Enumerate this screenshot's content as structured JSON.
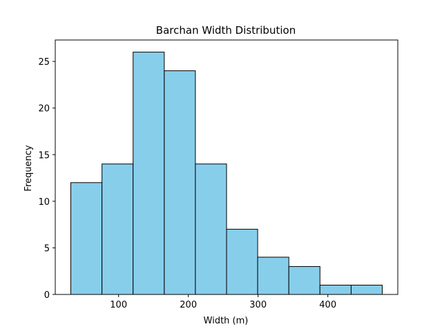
{
  "chart_data": {
    "type": "bar",
    "title": "Barchan Width Distribution",
    "xlabel": "Width (m)",
    "ylabel": "Frequency",
    "bin_edges": [
      31.5,
      76.2,
      120.8,
      165.5,
      210.1,
      254.8,
      299.4,
      344.1,
      388.7,
      433.4,
      478.0
    ],
    "values": [
      12,
      14,
      26,
      24,
      14,
      7,
      4,
      3,
      1,
      1
    ],
    "xlim": [
      9.2,
      500.3
    ],
    "ylim": [
      0,
      27.3
    ],
    "xticks": [
      100,
      200,
      300,
      400
    ],
    "yticks": [
      0,
      5,
      10,
      15,
      20,
      25
    ],
    "bar_color": "#87ceeb",
    "edge_color": "#000000",
    "grid": false
  }
}
